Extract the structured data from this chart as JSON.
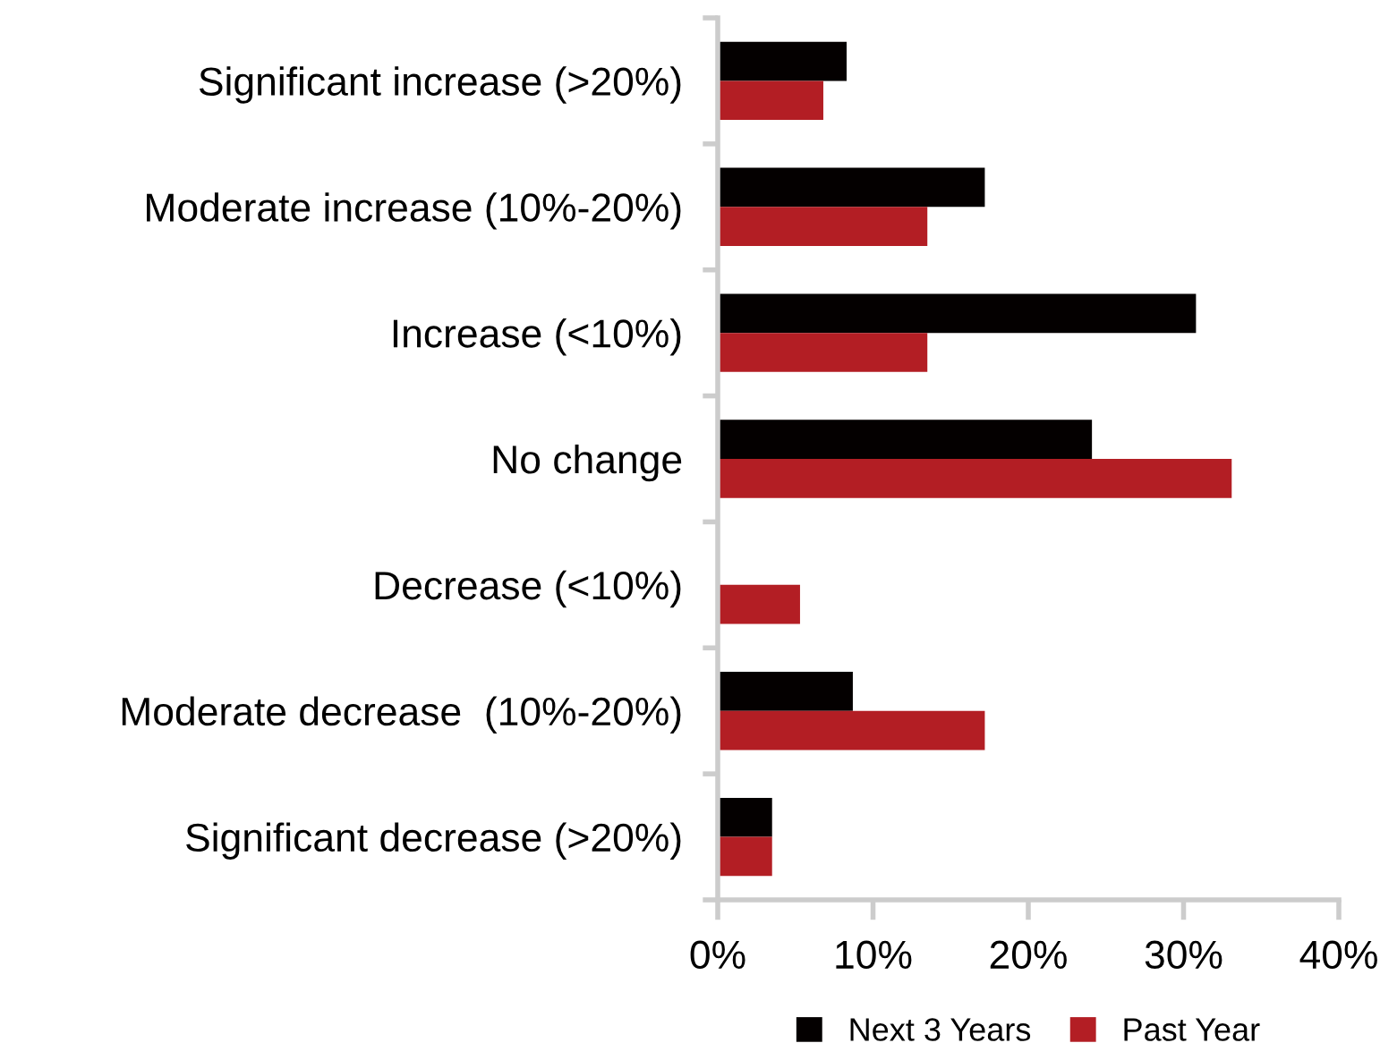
{
  "chart_data": {
    "type": "bar",
    "orientation": "horizontal",
    "categories": [
      "Significant increase (>20%)",
      "Moderate increase (10%-20%)",
      "Increase (<10%)",
      "No change",
      "Decrease (<10%)",
      "Moderate decrease  (10%-20%)",
      "Significant decrease (>20%)"
    ],
    "series": [
      {
        "name": "Next 3 Years",
        "color": "#040000",
        "values": [
          8.3,
          17.2,
          30.8,
          24.1,
          0,
          8.7,
          3.5
        ]
      },
      {
        "name": "Past Year",
        "color": "#b31e24",
        "values": [
          6.8,
          13.5,
          13.5,
          33.1,
          5.3,
          17.2,
          3.5
        ]
      }
    ],
    "xlim": [
      0,
      40
    ],
    "xticks": [
      {
        "value": 0,
        "label": "0%"
      },
      {
        "value": 10,
        "label": "10%"
      },
      {
        "value": 20,
        "label": "20%"
      },
      {
        "value": 30,
        "label": "30%"
      },
      {
        "value": 40,
        "label": "40%"
      }
    ],
    "grid": false,
    "legend": "bottom"
  }
}
